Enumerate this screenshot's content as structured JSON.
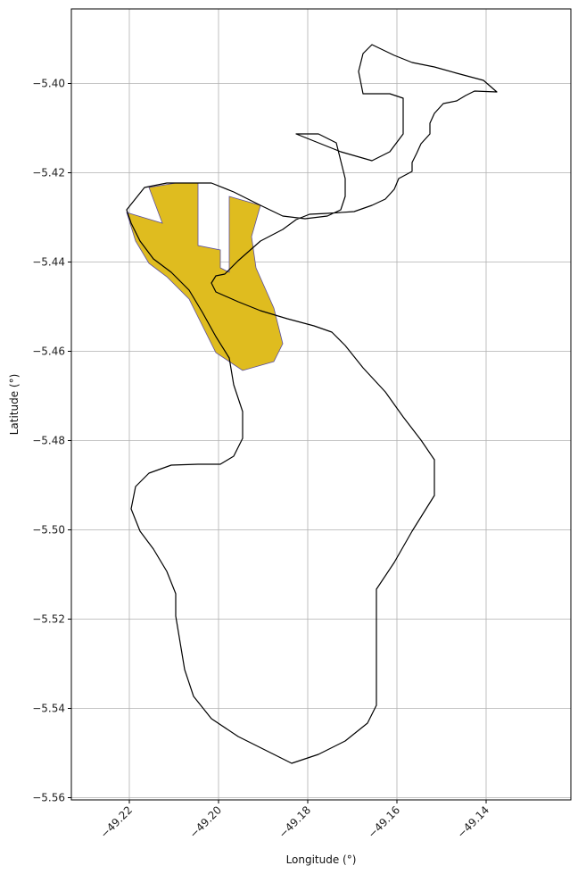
{
  "chart_data": {
    "type": "map",
    "xlabel": "Longitude (°)",
    "ylabel": "Latitude (°)",
    "xlim": [
      -49.233,
      -49.121
    ],
    "ylim": [
      -5.5605,
      -5.3833
    ],
    "grid": true,
    "x_ticks": [
      {
        "value": -49.22,
        "label": "−49.22"
      },
      {
        "value": -49.2,
        "label": "−49.20"
      },
      {
        "value": -49.18,
        "label": "−49.18"
      },
      {
        "value": -49.16,
        "label": "−49.16"
      },
      {
        "value": -49.14,
        "label": "−49.14"
      }
    ],
    "y_ticks": [
      {
        "value": -5.4,
        "label": "−5.40"
      },
      {
        "value": -5.42,
        "label": "−5.42"
      },
      {
        "value": -5.44,
        "label": "−5.44"
      },
      {
        "value": -5.46,
        "label": "−5.46"
      },
      {
        "value": -5.48,
        "label": "−5.48"
      },
      {
        "value": -5.5,
        "label": "−5.50"
      },
      {
        "value": -5.52,
        "label": "−5.52"
      },
      {
        "value": -5.54,
        "label": "−5.54"
      },
      {
        "value": -5.56,
        "label": "−5.56"
      }
    ],
    "colors": {
      "highlight_fill": "#dfbc1f",
      "highlight_edge": "#5b4f9e",
      "boundary": "#000000",
      "grid": "#b0b0b0"
    },
    "boundary": [
      [
        -49.1656,
        -5.3913
      ],
      [
        -49.1606,
        -5.3937
      ],
      [
        -49.1566,
        -5.3953
      ],
      [
        -49.1516,
        -5.3963
      ],
      [
        -49.1466,
        -5.3977
      ],
      [
        -49.1406,
        -5.3993
      ],
      [
        -49.1376,
        -5.4019
      ],
      [
        -49.1426,
        -5.4017
      ],
      [
        -49.1446,
        -5.4027
      ],
      [
        -49.1466,
        -5.4039
      ],
      [
        -49.1496,
        -5.4045
      ],
      [
        -49.1516,
        -5.4067
      ],
      [
        -49.1526,
        -5.4089
      ],
      [
        -49.1526,
        -5.4113
      ],
      [
        -49.1546,
        -5.4135
      ],
      [
        -49.1556,
        -5.4157
      ],
      [
        -49.1566,
        -5.4177
      ],
      [
        -49.1566,
        -5.4197
      ],
      [
        -49.1596,
        -5.4213
      ],
      [
        -49.1606,
        -5.4237
      ],
      [
        -49.1626,
        -5.4259
      ],
      [
        -49.1656,
        -5.4273
      ],
      [
        -49.1696,
        -5.4287
      ],
      [
        -49.1756,
        -5.4291
      ],
      [
        -49.1796,
        -5.4293
      ],
      [
        -49.1826,
        -5.4305
      ],
      [
        -49.1856,
        -5.4327
      ],
      [
        -49.1906,
        -5.4353
      ],
      [
        -49.1956,
        -5.4397
      ],
      [
        -49.1986,
        -5.4427
      ],
      [
        -49.2006,
        -5.4431
      ],
      [
        -49.2016,
        -5.4447
      ],
      [
        -49.2006,
        -5.4467
      ],
      [
        -49.1956,
        -5.4489
      ],
      [
        -49.1906,
        -5.4509
      ],
      [
        -49.1846,
        -5.4527
      ],
      [
        -49.1786,
        -5.4543
      ],
      [
        -49.1746,
        -5.4557
      ],
      [
        -49.1716,
        -5.4587
      ],
      [
        -49.1676,
        -5.4637
      ],
      [
        -49.1626,
        -5.4691
      ],
      [
        -49.1586,
        -5.4747
      ],
      [
        -49.1546,
        -5.4799
      ],
      [
        -49.1516,
        -5.4843
      ],
      [
        -49.1516,
        -5.4883
      ],
      [
        -49.1516,
        -5.4923
      ],
      [
        -49.1566,
        -5.5003
      ],
      [
        -49.1606,
        -5.5073
      ],
      [
        -49.1646,
        -5.5133
      ],
      [
        -49.1646,
        -5.5173
      ],
      [
        -49.1646,
        -5.5233
      ],
      [
        -49.1646,
        -5.5333
      ],
      [
        -49.1646,
        -5.5393
      ],
      [
        -49.1666,
        -5.5433
      ],
      [
        -49.1716,
        -5.5473
      ],
      [
        -49.1776,
        -5.5503
      ],
      [
        -49.1836,
        -5.5523
      ],
      [
        -49.1896,
        -5.5493
      ],
      [
        -49.1956,
        -5.5463
      ],
      [
        -49.2016,
        -5.5423
      ],
      [
        -49.2056,
        -5.5373
      ],
      [
        -49.2076,
        -5.5313
      ],
      [
        -49.2086,
        -5.5253
      ],
      [
        -49.2096,
        -5.5193
      ],
      [
        -49.2096,
        -5.5143
      ],
      [
        -49.2116,
        -5.5093
      ],
      [
        -49.2146,
        -5.5043
      ],
      [
        -49.2176,
        -5.5003
      ],
      [
        -49.2196,
        -5.4953
      ],
      [
        -49.2186,
        -5.4903
      ],
      [
        -49.2156,
        -5.4873
      ],
      [
        -49.2106,
        -5.4855
      ],
      [
        -49.2046,
        -5.4853
      ],
      [
        -49.1996,
        -5.4853
      ],
      [
        -49.1966,
        -5.4835
      ],
      [
        -49.1946,
        -5.4795
      ],
      [
        -49.1946,
        -5.4735
      ],
      [
        -49.1966,
        -5.4675
      ],
      [
        -49.1976,
        -5.4615
      ],
      [
        -49.2006,
        -5.4567
      ],
      [
        -49.2036,
        -5.4513
      ],
      [
        -49.2066,
        -5.4463
      ],
      [
        -49.2106,
        -5.4423
      ],
      [
        -49.2146,
        -5.4393
      ],
      [
        -49.2176,
        -5.4353
      ],
      [
        -49.2196,
        -5.4313
      ],
      [
        -49.2206,
        -5.4283
      ],
      [
        -49.2166,
        -5.4233
      ],
      [
        -49.2116,
        -5.4223
      ],
      [
        -49.2066,
        -5.4223
      ],
      [
        -49.2016,
        -5.4223
      ],
      [
        -49.1966,
        -5.4243
      ],
      [
        -49.1906,
        -5.4273
      ],
      [
        -49.1856,
        -5.4297
      ],
      [
        -49.1806,
        -5.4303
      ],
      [
        -49.1756,
        -5.4297
      ],
      [
        -49.1726,
        -5.4283
      ],
      [
        -49.1716,
        -5.4253
      ],
      [
        -49.1716,
        -5.4213
      ],
      [
        -49.1726,
        -5.4173
      ],
      [
        -49.1736,
        -5.4133
      ],
      [
        -49.1776,
        -5.4113
      ],
      [
        -49.1826,
        -5.4113
      ],
      [
        -49.1776,
        -5.4133
      ],
      [
        -49.1726,
        -5.4153
      ],
      [
        -49.1656,
        -5.4173
      ],
      [
        -49.1616,
        -5.4153
      ],
      [
        -49.1586,
        -5.4113
      ],
      [
        -49.1586,
        -5.4063
      ],
      [
        -49.1586,
        -5.4033
      ],
      [
        -49.1616,
        -5.4023
      ],
      [
        -49.1676,
        -5.4023
      ],
      [
        -49.1686,
        -5.3973
      ],
      [
        -49.1676,
        -5.3933
      ]
    ],
    "highlight": [
      [
        -49.2206,
        -5.4289
      ],
      [
        -49.2126,
        -5.4313
      ],
      [
        -49.2156,
        -5.4233
      ],
      [
        -49.2096,
        -5.4223
      ],
      [
        -49.2046,
        -5.4223
      ],
      [
        -49.2046,
        -5.4363
      ],
      [
        -49.1996,
        -5.4373
      ],
      [
        -49.1996,
        -5.4413
      ],
      [
        -49.1976,
        -5.4423
      ],
      [
        -49.1976,
        -5.4253
      ],
      [
        -49.1906,
        -5.4273
      ],
      [
        -49.1926,
        -5.4343
      ],
      [
        -49.1916,
        -5.4413
      ],
      [
        -49.1876,
        -5.4503
      ],
      [
        -49.1856,
        -5.4583
      ],
      [
        -49.1876,
        -5.4623
      ],
      [
        -49.1946,
        -5.4643
      ],
      [
        -49.2006,
        -5.4603
      ],
      [
        -49.2036,
        -5.4543
      ],
      [
        -49.2056,
        -5.4503
      ],
      [
        -49.2066,
        -5.4483
      ],
      [
        -49.2116,
        -5.4433
      ],
      [
        -49.2156,
        -5.4403
      ],
      [
        -49.2186,
        -5.4353
      ]
    ]
  }
}
